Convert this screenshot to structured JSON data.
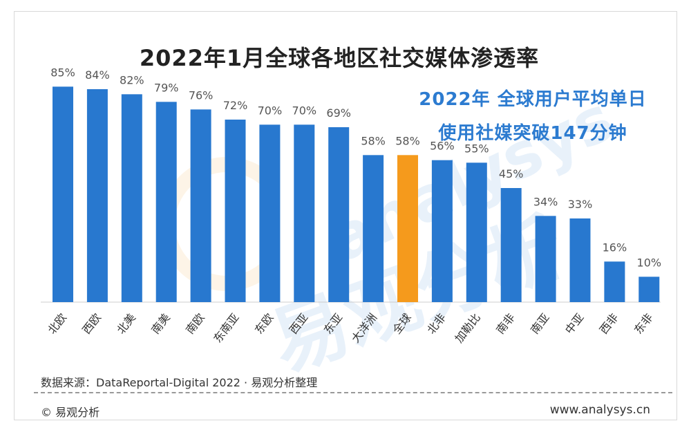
{
  "chart_data": {
    "type": "bar",
    "title": "2022年1月全球各地区社交媒体渗透率",
    "categories": [
      "北欧",
      "西欧",
      "北美",
      "南美",
      "南欧",
      "东南亚",
      "东欧",
      "西亚",
      "东亚",
      "大洋洲",
      "全球",
      "北非",
      "加勒比",
      "南非",
      "南亚",
      "中亚",
      "西非",
      "东非"
    ],
    "values": [
      85,
      84,
      82,
      79,
      76,
      72,
      70,
      70,
      69,
      58,
      58,
      56,
      55,
      45,
      34,
      33,
      16,
      10
    ],
    "value_labels": [
      "85%",
      "84%",
      "82%",
      "79%",
      "76%",
      "72%",
      "70%",
      "70%",
      "69%",
      "58%",
      "58%",
      "56%",
      "55%",
      "45%",
      "34%",
      "33%",
      "16%",
      "10%"
    ],
    "highlight_category": "全球",
    "ylim": [
      0,
      90
    ],
    "grid": false,
    "xlabel": "",
    "ylabel": "",
    "colors": {
      "bar": "#2878cf",
      "highlight": "#f59a1c"
    },
    "annotation": [
      "2022年 全球用户平均单日",
      "使用社媒突破147分钟"
    ]
  },
  "source_text": "数据来源：DataReportal-Digital 2022 · 易观分析整理",
  "footer": {
    "copyright": "© 易观分析",
    "website": "www.analysys.cn"
  },
  "watermark": {
    "text": "易观分析",
    "text_en": "analysys"
  }
}
